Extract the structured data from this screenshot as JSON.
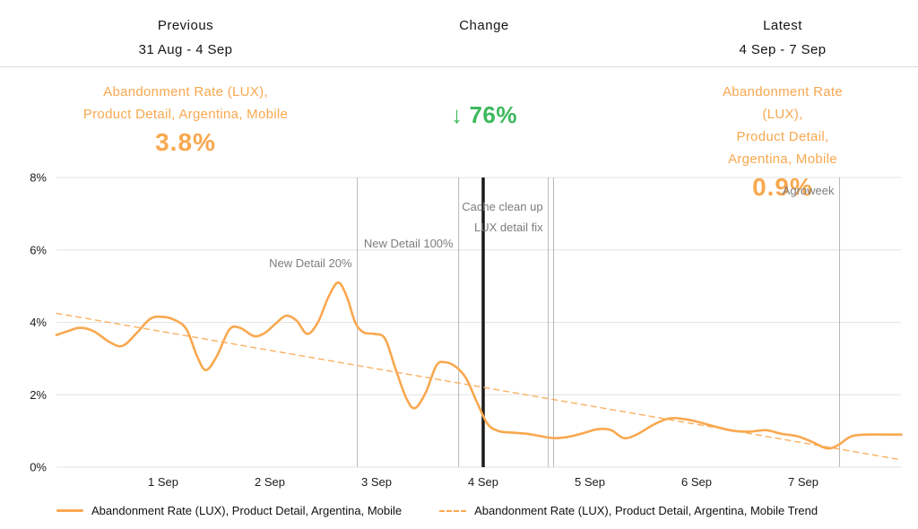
{
  "header": {
    "previous": {
      "title": "Previous",
      "range": "31 Aug - 4 Sep"
    },
    "change": {
      "title": "Change"
    },
    "latest": {
      "title": "Latest",
      "range": "4 Sep - 7 Sep"
    }
  },
  "metrics": {
    "previous": {
      "label_line1": "Abandonment Rate (LUX),",
      "label_line2": "Product Detail, Argentina, Mobile",
      "value": "3.8%"
    },
    "change": {
      "arrow": "↓",
      "value": "76%",
      "direction": "down"
    },
    "latest": {
      "label_line1": "Abandonment Rate (LUX),",
      "label_line2": "Product Detail, Argentina, Mobile",
      "value": "0.9%"
    }
  },
  "colors": {
    "accent_orange": "#F9A850",
    "change_green": "#3DB95E",
    "grid_gray": "#e3e3e3",
    "annotation_gray": "#b8b8b8",
    "annotation_text": "#7d7d7d",
    "period_divider_black": "#1a1a1a",
    "axis_text": "#1b1b1b"
  },
  "legend": [
    {
      "style": "solid",
      "label": "Abandonment Rate (LUX), Product Detail, Argentina, Mobile"
    },
    {
      "style": "dashed",
      "label": "Abandonment Rate (LUX), Product Detail, Argentina, Mobile Trend"
    }
  ],
  "chart_data": {
    "type": "line",
    "title": "",
    "x_unit": "days since 31 Aug 00:00",
    "ylim": [
      0,
      8
    ],
    "grid": "horizontal",
    "y_ticks": [
      {
        "value": 0,
        "label": "0%"
      },
      {
        "value": 2,
        "label": "2%"
      },
      {
        "value": 4,
        "label": "4%"
      },
      {
        "value": 6,
        "label": "6%"
      },
      {
        "value": 8,
        "label": "8%"
      }
    ],
    "x_ticks": [
      {
        "t": 1,
        "label": "1 Sep"
      },
      {
        "t": 2,
        "label": "2 Sep"
      },
      {
        "t": 3,
        "label": "3 Sep"
      },
      {
        "t": 4,
        "label": "4 Sep"
      },
      {
        "t": 5,
        "label": "5 Sep"
      },
      {
        "t": 6,
        "label": "6 Sep"
      },
      {
        "t": 7,
        "label": "7 Sep"
      }
    ],
    "series": [
      {
        "name": "Abandonment Rate (LUX), Product Detail, Argentina, Mobile",
        "style": "solid",
        "unit": "%",
        "points": [
          [
            0.0,
            3.65
          ],
          [
            0.1,
            3.75
          ],
          [
            0.22,
            3.85
          ],
          [
            0.35,
            3.75
          ],
          [
            0.5,
            3.45
          ],
          [
            0.62,
            3.35
          ],
          [
            0.75,
            3.7
          ],
          [
            0.88,
            4.1
          ],
          [
            1.0,
            4.15
          ],
          [
            1.12,
            4.05
          ],
          [
            1.22,
            3.8
          ],
          [
            1.32,
            3.05
          ],
          [
            1.4,
            2.68
          ],
          [
            1.5,
            3.05
          ],
          [
            1.62,
            3.8
          ],
          [
            1.72,
            3.85
          ],
          [
            1.85,
            3.62
          ],
          [
            1.95,
            3.7
          ],
          [
            2.05,
            3.95
          ],
          [
            2.15,
            4.18
          ],
          [
            2.25,
            4.05
          ],
          [
            2.35,
            3.68
          ],
          [
            2.45,
            4.0
          ],
          [
            2.55,
            4.7
          ],
          [
            2.64,
            5.1
          ],
          [
            2.72,
            4.72
          ],
          [
            2.8,
            4.0
          ],
          [
            2.88,
            3.72
          ],
          [
            2.98,
            3.68
          ],
          [
            3.08,
            3.55
          ],
          [
            3.18,
            2.7
          ],
          [
            3.28,
            1.9
          ],
          [
            3.36,
            1.63
          ],
          [
            3.46,
            2.05
          ],
          [
            3.56,
            2.8
          ],
          [
            3.64,
            2.9
          ],
          [
            3.74,
            2.78
          ],
          [
            3.84,
            2.45
          ],
          [
            3.94,
            1.8
          ],
          [
            4.04,
            1.2
          ],
          [
            4.14,
            1.0
          ],
          [
            4.28,
            0.95
          ],
          [
            4.42,
            0.92
          ],
          [
            4.55,
            0.85
          ],
          [
            4.68,
            0.8
          ],
          [
            4.82,
            0.85
          ],
          [
            4.95,
            0.95
          ],
          [
            5.08,
            1.05
          ],
          [
            5.2,
            1.02
          ],
          [
            5.32,
            0.8
          ],
          [
            5.45,
            0.92
          ],
          [
            5.6,
            1.18
          ],
          [
            5.75,
            1.35
          ],
          [
            5.9,
            1.32
          ],
          [
            6.05,
            1.22
          ],
          [
            6.2,
            1.1
          ],
          [
            6.35,
            1.0
          ],
          [
            6.5,
            0.98
          ],
          [
            6.65,
            1.02
          ],
          [
            6.8,
            0.92
          ],
          [
            6.95,
            0.85
          ],
          [
            7.08,
            0.7
          ],
          [
            7.22,
            0.52
          ],
          [
            7.32,
            0.6
          ],
          [
            7.45,
            0.85
          ],
          [
            7.6,
            0.9
          ],
          [
            7.78,
            0.9
          ],
          [
            7.92,
            0.9
          ]
        ]
      },
      {
        "name": "Abandonment Rate (LUX), Product Detail, Argentina, Mobile Trend",
        "style": "dashed",
        "unit": "%",
        "points": [
          [
            0.0,
            4.25
          ],
          [
            7.92,
            0.2
          ]
        ]
      }
    ],
    "annotations": [
      {
        "t": 2.82,
        "label": "New Detail 20%",
        "type": "event"
      },
      {
        "t": 3.77,
        "label": "New Detail 100%",
        "type": "event"
      },
      {
        "t": 4.0,
        "label": "",
        "type": "period-divider"
      },
      {
        "t": 4.61,
        "label": "Cache clean up",
        "type": "event"
      },
      {
        "t": 4.66,
        "label": "LUX detail fix",
        "type": "event"
      },
      {
        "t": 7.34,
        "label": "Agroweek",
        "type": "event"
      }
    ]
  }
}
